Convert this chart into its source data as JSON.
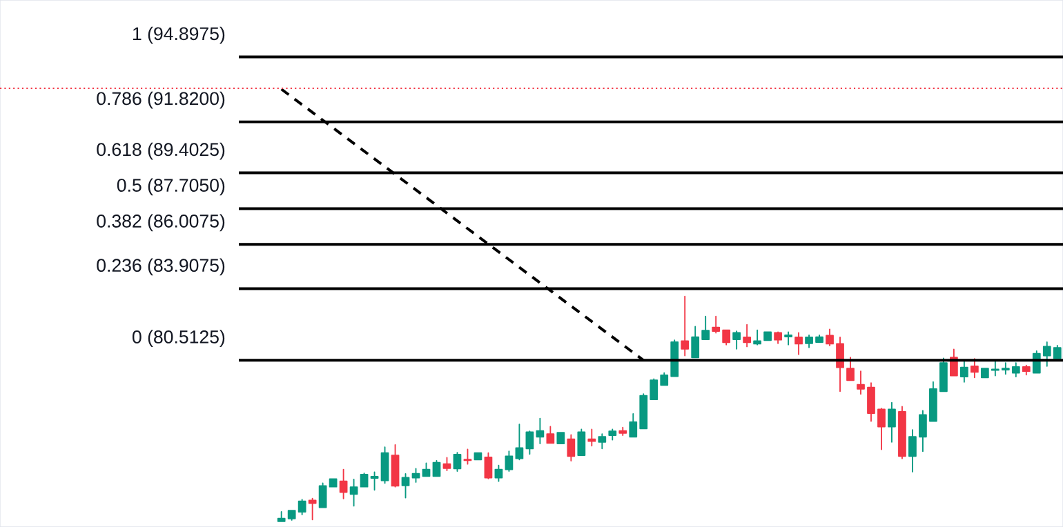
{
  "chart_data": {
    "type": "candlestick",
    "categories": [
      null,
      null,
      null,
      null,
      null,
      null,
      null,
      null,
      null,
      null,
      null,
      null,
      null,
      null,
      null,
      null,
      null,
      null,
      null,
      null,
      null,
      null,
      null,
      null,
      null,
      null,
      null,
      null,
      null,
      null,
      null,
      null,
      null,
      null,
      null,
      null,
      null,
      null,
      null,
      null,
      null,
      null,
      null,
      null,
      null,
      null,
      null,
      null,
      null,
      null,
      null,
      null,
      null,
      null,
      null,
      null,
      null,
      null,
      null,
      null,
      null,
      null,
      null,
      null,
      null,
      null,
      null,
      null,
      null,
      null,
      null,
      null,
      null,
      null,
      null,
      null
    ],
    "ohlc": [
      [
        72.87,
        73.32,
        72.87,
        73.0
      ],
      [
        73.0,
        73.38,
        72.93,
        73.38
      ],
      [
        73.32,
        73.9,
        73.19,
        73.82
      ],
      [
        73.86,
        73.95,
        72.95,
        73.73
      ],
      [
        73.53,
        74.68,
        73.53,
        74.55
      ],
      [
        74.51,
        74.88,
        74.51,
        74.88
      ],
      [
        74.77,
        75.33,
        73.95,
        74.25
      ],
      [
        74.16,
        74.86,
        73.6,
        74.49
      ],
      [
        74.51,
        75.15,
        74.51,
        75.09
      ],
      [
        74.92,
        75.2,
        74.36,
        74.99
      ],
      [
        74.81,
        76.39,
        74.68,
        76.11
      ],
      [
        76.0,
        76.5,
        74.51,
        74.55
      ],
      [
        74.57,
        75.12,
        73.99,
        74.94
      ],
      [
        74.94,
        75.37,
        74.73,
        75.13
      ],
      [
        75.01,
        75.63,
        75.01,
        75.33
      ],
      [
        75.01,
        75.74,
        75.01,
        75.65
      ],
      [
        75.59,
        75.89,
        75.28,
        75.39
      ],
      [
        75.37,
        76.13,
        75.25,
        76.04
      ],
      [
        75.8,
        76.28,
        75.59,
        75.76
      ],
      [
        75.8,
        76.11,
        75.8,
        76.11
      ],
      [
        75.91,
        76.11,
        74.9,
        74.94
      ],
      [
        74.94,
        75.52,
        74.77,
        75.33
      ],
      [
        75.33,
        76.19,
        75.25,
        75.96
      ],
      [
        75.85,
        77.47,
        75.8,
        76.35
      ],
      [
        76.32,
        77.14,
        76.06,
        77.1
      ],
      [
        76.88,
        77.75,
        76.56,
        77.16
      ],
      [
        77.01,
        77.36,
        76.58,
        76.58
      ],
      [
        76.56,
        77.08,
        76.56,
        77.08
      ],
      [
        76.77,
        76.97,
        75.74,
        75.96
      ],
      [
        76.0,
        77.23,
        76.0,
        77.1
      ],
      [
        76.77,
        77.23,
        76.45,
        76.67
      ],
      [
        76.63,
        77.01,
        76.32,
        76.88
      ],
      [
        76.95,
        77.23,
        76.74,
        77.14
      ],
      [
        77.16,
        77.32,
        76.95,
        77.06
      ],
      [
        76.88,
        77.97,
        76.88,
        77.58
      ],
      [
        77.27,
        78.91,
        77.27,
        78.83
      ],
      [
        78.65,
        79.62,
        78.65,
        79.56
      ],
      [
        79.33,
        79.91,
        79.33,
        79.8
      ],
      [
        79.75,
        81.46,
        79.75,
        81.37
      ],
      [
        81.42,
        83.54,
        80.73,
        81.05
      ],
      [
        80.64,
        82.11,
        80.64,
        81.61
      ],
      [
        81.5,
        82.59,
        81.5,
        81.92
      ],
      [
        82.07,
        82.59,
        81.81,
        81.89
      ],
      [
        81.94,
        81.94,
        81.25,
        81.36
      ],
      [
        81.5,
        81.89,
        81.05,
        81.81
      ],
      [
        81.6,
        82.2,
        81.16,
        81.36
      ],
      [
        81.29,
        81.94,
        81.25,
        81.42
      ],
      [
        81.46,
        81.85,
        81.46,
        81.85
      ],
      [
        81.81,
        81.85,
        81.31,
        81.48
      ],
      [
        81.63,
        81.85,
        81.25,
        81.7
      ],
      [
        81.6,
        81.81,
        80.79,
        81.29
      ],
      [
        81.31,
        81.7,
        81.12,
        81.6
      ],
      [
        81.37,
        81.7,
        81.37,
        81.61
      ],
      [
        81.68,
        81.98,
        81.21,
        81.29
      ],
      [
        81.29,
        81.6,
        79.04,
        80.17
      ],
      [
        80.12,
        80.64,
        79.56,
        79.56
      ],
      [
        79.35,
        79.99,
        78.91,
        79.15
      ],
      [
        79.22,
        79.43,
        77.62,
        78.0
      ],
      [
        78.18,
        78.22,
        76.28,
        77.36
      ],
      [
        77.36,
        78.5,
        76.63,
        78.18
      ],
      [
        78.07,
        78.31,
        75.85,
        75.96
      ],
      [
        75.96,
        77.21,
        75.22,
        76.88
      ],
      [
        76.88,
        78.12,
        76.19,
        77.92
      ],
      [
        77.62,
        79.48,
        77.62,
        79.15
      ],
      [
        79.04,
        80.6,
        79.04,
        80.38
      ],
      [
        80.64,
        81.03,
        79.78,
        79.78
      ],
      [
        79.73,
        80.51,
        79.48,
        80.17
      ],
      [
        80.23,
        80.58,
        79.69,
        79.95
      ],
      [
        79.69,
        80.12,
        79.69,
        80.12
      ],
      [
        80.04,
        80.45,
        79.78,
        80.08
      ],
      [
        80.06,
        80.38,
        79.86,
        80.12
      ],
      [
        79.91,
        80.38,
        79.73,
        80.19
      ],
      [
        80.19,
        80.27,
        79.82,
        79.99
      ],
      [
        79.91,
        80.95,
        79.91,
        80.82
      ],
      [
        80.73,
        81.37,
        80.23,
        81.16
      ],
      [
        80.6,
        81.21,
        80.6,
        81.1
      ]
    ],
    "colors": [
      "#089981",
      "#089981",
      "#089981",
      "#f23645",
      "#089981",
      "#089981",
      "#f23645",
      "#089981",
      "#089981",
      "#089981",
      "#089981",
      "#f23645",
      "#089981",
      "#089981",
      "#089981",
      "#089981",
      "#f23645",
      "#089981",
      "#f23645",
      "#089981",
      "#f23645",
      "#089981",
      "#089981",
      "#089981",
      "#089981",
      "#089981",
      "#f23645",
      "#089981",
      "#f23645",
      "#089981",
      "#f23645",
      "#089981",
      "#089981",
      "#f23645",
      "#089981",
      "#089981",
      "#089981",
      "#089981",
      "#089981",
      "#f23645",
      "#089981",
      "#089981",
      "#f23645",
      "#f23645",
      "#089981",
      "#f23645",
      "#089981",
      "#089981",
      "#f23645",
      "#089981",
      "#f23645",
      "#089981",
      "#089981",
      "#f23645",
      "#f23645",
      "#f23645",
      "#f23645",
      "#f23645",
      "#f23645",
      "#089981",
      "#f23645",
      "#089981",
      "#089981",
      "#089981",
      "#089981",
      "#f23645",
      "#089981",
      "#f23645",
      "#089981",
      "#089981",
      "#089981",
      "#089981",
      "#f23645",
      "#089981",
      "#089981",
      "#089981"
    ],
    "series": [
      {
        "type": "line",
        "values": [
          93.37,
          null,
          null,
          null,
          null,
          null,
          null,
          null,
          null,
          null,
          null,
          null,
          null,
          null,
          null,
          null,
          null,
          null,
          null,
          null,
          null,
          null,
          null,
          null,
          null,
          null,
          null,
          null,
          null,
          null,
          null,
          null,
          null,
          null,
          null,
          80.51,
          null,
          null,
          null,
          null,
          null,
          null,
          null,
          null,
          null,
          null,
          null,
          null,
          null,
          null,
          null,
          null,
          null,
          null,
          null,
          null,
          null,
          null,
          null,
          null,
          null,
          null,
          null,
          null,
          null,
          null,
          null,
          null,
          null,
          null,
          null,
          null,
          null,
          null,
          null,
          null
        ],
        "color": "#000000",
        "line_style": "dashed",
        "marker": "none"
      }
    ],
    "ref_lines": [
      {
        "axis": "y",
        "value": 94.8975,
        "label": "1 (94.8975)",
        "color": "#000000",
        "line_style": "solid"
      },
      {
        "axis": "y",
        "value": 91.82,
        "label": "0.786 (91.8200)",
        "color": "#000000",
        "line_style": "solid"
      },
      {
        "axis": "y",
        "value": 89.4025,
        "label": "0.618 (89.4025)",
        "color": "#000000",
        "line_style": "solid"
      },
      {
        "axis": "y",
        "value": 87.705,
        "label": "0.5 (87.7050)",
        "color": "#000000",
        "line_style": "solid"
      },
      {
        "axis": "y",
        "value": 86.0075,
        "label": "0.382 (86.0075)",
        "color": "#000000",
        "line_style": "solid"
      },
      {
        "axis": "y",
        "value": 83.9075,
        "label": "0.236 (83.9075)",
        "color": "#000000",
        "line_style": "solid"
      },
      {
        "axis": "y",
        "value": 80.5125,
        "label": "0 (80.5125)",
        "color": "#000000",
        "line_style": "solid"
      },
      {
        "axis": "y",
        "value": 93.41,
        "color": "#f23645",
        "line_style": "dotted"
      }
    ],
    "ylim": [
      72.6,
      97.6
    ],
    "tick_labels": false
  }
}
